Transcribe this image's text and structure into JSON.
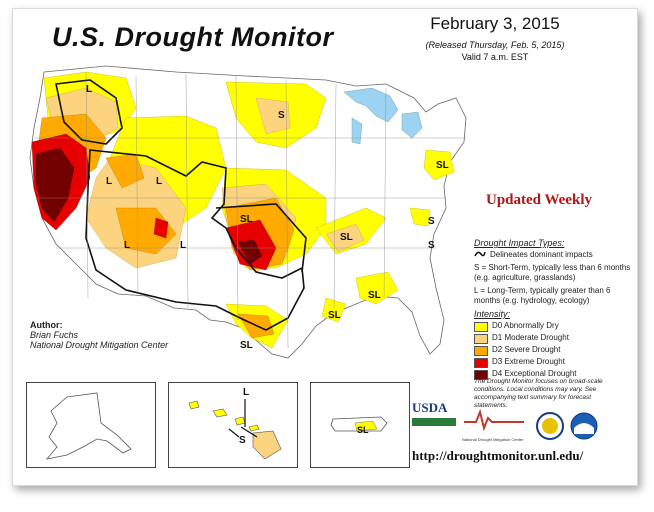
{
  "header": {
    "title": "U.S. Drought Monitor",
    "date": "February 3, 2015",
    "released": "(Released Thursday, Feb. 5, 2015)",
    "valid": "Valid 7 a.m. EST"
  },
  "banner": "Updated Weekly",
  "legend": {
    "impact_header": "Drought Impact Types:",
    "dominant_line": "Delineates dominant impacts",
    "short_term": "S = Short-Term, typically less than 6 months (e.g. agriculture, grasslands)",
    "long_term": "L = Long-Term, typically greater than 6 months (e.g. hydrology, ecology)",
    "intensity_header": "Intensity:",
    "categories": [
      {
        "label": "D0 Abnormally Dry",
        "color": "#ffff00"
      },
      {
        "label": "D1 Moderate Drought",
        "color": "#fcd37f"
      },
      {
        "label": "D2 Severe Drought",
        "color": "#ffaa00"
      },
      {
        "label": "D3 Extreme Drought",
        "color": "#e60000"
      },
      {
        "label": "D4 Exceptional Drought",
        "color": "#730000"
      }
    ]
  },
  "author": {
    "label": "Author:",
    "name": "Brian Fuchs",
    "org": "National Drought Mitigation Center"
  },
  "note": "The Drought Monitor focuses on broad-scale conditions. Local conditions may vary. See accompanying text summary for forecast statements.",
  "map_labels": {
    "L": "L",
    "S": "S",
    "SL": "SL"
  },
  "logos": {
    "usda": "USDA",
    "ndmc": "National Drought Mitigation Center"
  },
  "url": "http://droughtmonitor.unl.edu/",
  "colors": {
    "d0": "#ffff00",
    "d1": "#fcd37f",
    "d2": "#ffaa00",
    "d3": "#e60000",
    "d4": "#730000",
    "water": "#9cd3f3"
  }
}
